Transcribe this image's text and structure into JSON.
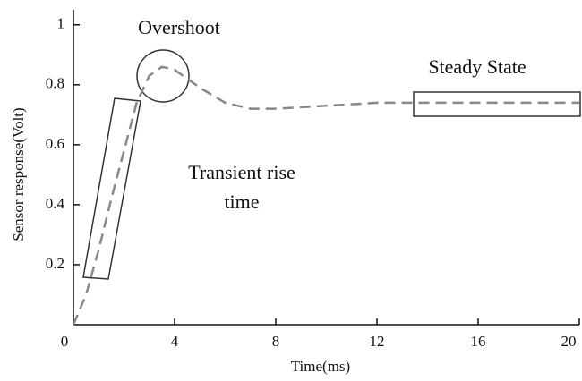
{
  "chart_data": {
    "type": "line",
    "xlabel": "Time(ms)",
    "ylabel": "Sensor response(Volt)",
    "x": [
      0,
      0.5,
      1,
      1.5,
      2,
      2.5,
      3,
      3.5,
      4,
      5,
      6,
      7,
      8,
      10,
      12,
      14,
      16,
      18,
      20
    ],
    "series": [
      {
        "color": "#888888",
        "values": [
          0,
          0.1,
          0.25,
          0.42,
          0.58,
          0.74,
          0.83,
          0.86,
          0.85,
          0.79,
          0.74,
          0.72,
          0.72,
          0.73,
          0.74,
          0.74,
          0.74,
          0.74,
          0.74
        ]
      }
    ],
    "xlim": [
      0,
      20
    ],
    "xticks": [
      0,
      4,
      8,
      12,
      16,
      20
    ],
    "ylim": [
      0,
      1.05
    ],
    "yticks": [
      0.2,
      0.4,
      0.6,
      0.8,
      1
    ],
    "annotations": [
      {
        "text": "Overshoot"
      },
      {
        "text": "Steady State"
      },
      {
        "lines": [
          "Transient rise",
          "time"
        ]
      }
    ],
    "grid": false
  }
}
